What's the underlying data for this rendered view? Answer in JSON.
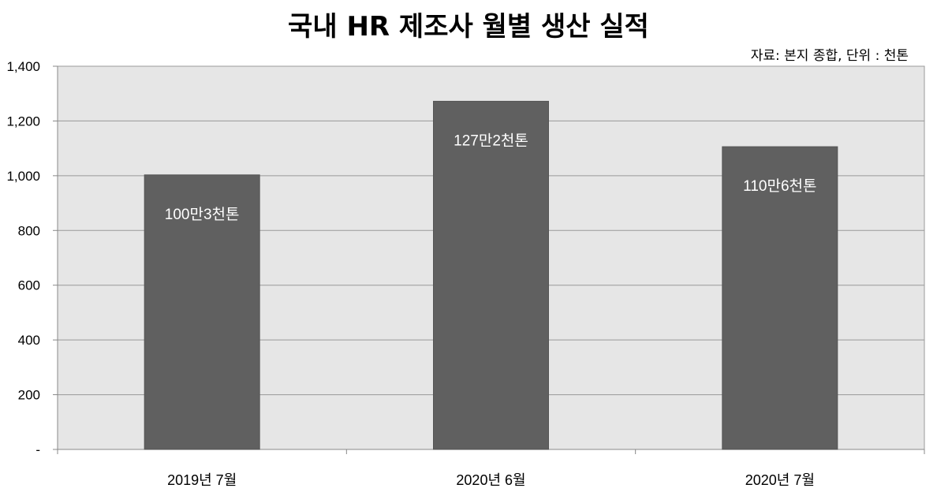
{
  "chart_data": {
    "type": "bar",
    "title": "국내 HR 제조사 월별 생산 실적",
    "source_note": "자료: 본지 종합, 단위 : 천톤",
    "categories": [
      "2019년 7월",
      "2020년 6월",
      "2020년 7월"
    ],
    "values": [
      1003,
      1272,
      1106
    ],
    "data_labels": [
      "100만3천톤",
      "127만2천톤",
      "110만6천톤"
    ],
    "ylim": [
      0,
      1400
    ],
    "yticks": [
      0,
      200,
      400,
      600,
      800,
      1000,
      1200,
      1400
    ],
    "ytick_labels": [
      "-",
      "200",
      "400",
      "600",
      "800",
      "1,000",
      "1,200",
      "1,400"
    ],
    "grid": true,
    "legend": "none",
    "colors": {
      "bar": "#606060",
      "plot_bg": "#e6e6e6",
      "grid": "#999999"
    }
  }
}
